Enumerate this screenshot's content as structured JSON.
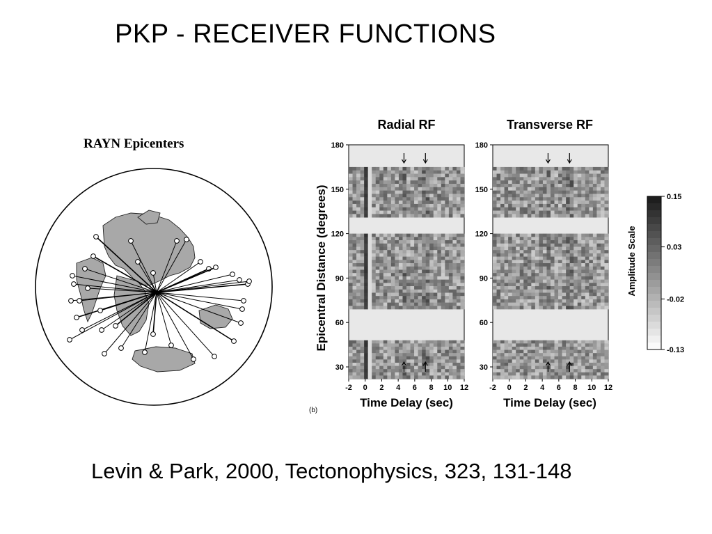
{
  "slide": {
    "title": "PKP - RECEIVER FUNCTIONS",
    "citation": "Levin & Park, 2000, Tectonophysics, 323, 131-148"
  },
  "map": {
    "title": "RAYN Epicenters",
    "colors": {
      "land": "#a8a8a8",
      "ray": "#000000",
      "circle": "#000000"
    }
  },
  "figure": {
    "panel_label": "(b)",
    "ylabel": "Epicentral Distance (degrees)",
    "xlabel": "Time Delay (sec)",
    "scale_label": "Amplitude Scale"
  },
  "chart_data": [
    {
      "type": "heatmap",
      "title": "Radial RF",
      "xlabel": "Time Delay (sec)",
      "ylabel": "Epicentral Distance (degrees)",
      "xlim": [
        -2,
        12
      ],
      "ylim": [
        22,
        180
      ],
      "x_ticks": [
        -2,
        0,
        2,
        4,
        6,
        8,
        10,
        12
      ],
      "y_ticks": [
        30,
        60,
        90,
        120,
        150,
        180
      ],
      "data_bands": [
        [
          22,
          48
        ],
        [
          69,
          120
        ],
        [
          131,
          165
        ]
      ],
      "arrows": {
        "top": [
          4.7,
          7.3
        ],
        "bottom": [
          4.7,
          7.3
        ]
      }
    },
    {
      "type": "heatmap",
      "title": "Transverse RF",
      "xlabel": "Time Delay (sec)",
      "ylabel": "",
      "xlim": [
        -2,
        12
      ],
      "ylim": [
        22,
        180
      ],
      "x_ticks": [
        -2,
        0,
        2,
        4,
        6,
        8,
        10,
        12
      ],
      "y_ticks": [
        30,
        60,
        90,
        120,
        150,
        180
      ],
      "data_bands": [
        [
          22,
          48
        ],
        [
          69,
          120
        ],
        [
          131,
          165
        ]
      ],
      "arrows": {
        "top": [
          4.7,
          7.3
        ],
        "bottom": [
          4.7,
          7.3
        ]
      }
    },
    {
      "type": "colorbar",
      "title": "Amplitude Scale",
      "ticks": [
        "0.15",
        "0.03",
        "-0.02",
        "-0.13"
      ],
      "range": [
        -0.13,
        0.15
      ]
    }
  ]
}
